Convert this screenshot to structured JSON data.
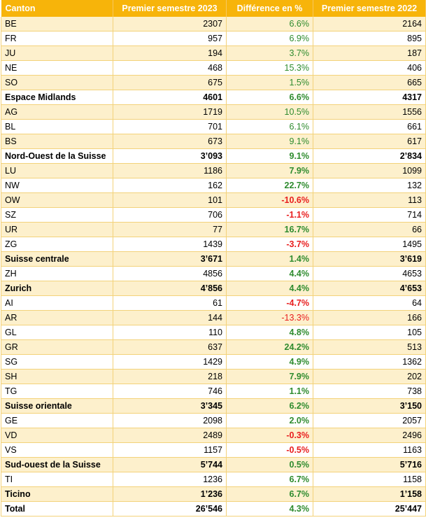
{
  "headers": [
    "Canton",
    "Premier semestre 2023",
    "Différence en %",
    "Premier semestre 2022"
  ],
  "colors": {
    "header_bg": "#f7b40a",
    "shade": "#fdf0cc",
    "positive": "#2e8b2e",
    "negative": "#e81e1e"
  },
  "rows": [
    {
      "canton": "BE",
      "s2023": "2307",
      "diff": "6.6%",
      "s2022": "2164",
      "bold": false,
      "dbold": false,
      "sign": "pos"
    },
    {
      "canton": "FR",
      "s2023": "957",
      "diff": "6.9%",
      "s2022": "895",
      "bold": false,
      "dbold": false,
      "sign": "pos"
    },
    {
      "canton": "JU",
      "s2023": "194",
      "diff": "3.7%",
      "s2022": "187",
      "bold": false,
      "dbold": false,
      "sign": "pos"
    },
    {
      "canton": "NE",
      "s2023": "468",
      "diff": "15.3%",
      "s2022": "406",
      "bold": false,
      "dbold": false,
      "sign": "pos"
    },
    {
      "canton": "SO",
      "s2023": "675",
      "diff": "1.5%",
      "s2022": "665",
      "bold": false,
      "dbold": false,
      "sign": "pos"
    },
    {
      "canton": "Espace Midlands",
      "s2023": "4601",
      "diff": "6.6%",
      "s2022": "4317",
      "bold": true,
      "dbold": false,
      "sign": "pos"
    },
    {
      "canton": "AG",
      "s2023": "1719",
      "diff": "10.5%",
      "s2022": "1556",
      "bold": false,
      "dbold": false,
      "sign": "pos"
    },
    {
      "canton": "BL",
      "s2023": "701",
      "diff": "6.1%",
      "s2022": "661",
      "bold": false,
      "dbold": false,
      "sign": "pos"
    },
    {
      "canton": "BS",
      "s2023": "673",
      "diff": "9.1%",
      "s2022": "617",
      "bold": false,
      "dbold": false,
      "sign": "pos"
    },
    {
      "canton": "Nord-Ouest de la Suisse",
      "s2023": "3’093",
      "diff": "9.1%",
      "s2022": "2’834",
      "bold": true,
      "dbold": true,
      "sign": "pos"
    },
    {
      "canton": "LU",
      "s2023": "1186",
      "diff": "7.9%",
      "s2022": "1099",
      "bold": false,
      "dbold": true,
      "sign": "pos"
    },
    {
      "canton": "NW",
      "s2023": "162",
      "diff": "22.7%",
      "s2022": "132",
      "bold": false,
      "dbold": true,
      "sign": "pos"
    },
    {
      "canton": "OW",
      "s2023": "101",
      "diff": "-10.6%",
      "s2022": "113",
      "bold": false,
      "dbold": true,
      "sign": "neg"
    },
    {
      "canton": "SZ",
      "s2023": "706",
      "diff": "-1.1%",
      "s2022": "714",
      "bold": false,
      "dbold": true,
      "sign": "neg"
    },
    {
      "canton": "UR",
      "s2023": "77",
      "diff": "16.7%",
      "s2022": "66",
      "bold": false,
      "dbold": true,
      "sign": "pos"
    },
    {
      "canton": "ZG",
      "s2023": "1439",
      "diff": "-3.7%",
      "s2022": "1495",
      "bold": false,
      "dbold": true,
      "sign": "neg"
    },
    {
      "canton": "Suisse centrale",
      "s2023": "3’671",
      "diff": "1.4%",
      "s2022": "3’619",
      "bold": true,
      "dbold": true,
      "sign": "pos"
    },
    {
      "canton": "ZH",
      "s2023": "4856",
      "diff": "4.4%",
      "s2022": "4653",
      "bold": false,
      "dbold": true,
      "sign": "pos"
    },
    {
      "canton": "Zurich",
      "s2023": "4’856",
      "diff": "4.4%",
      "s2022": "4’653",
      "bold": true,
      "dbold": true,
      "sign": "pos"
    },
    {
      "canton": "AI",
      "s2023": "61",
      "diff": "-4.7%",
      "s2022": "64",
      "bold": false,
      "dbold": true,
      "sign": "neg"
    },
    {
      "canton": "AR",
      "s2023": "144",
      "diff": "-13.3%",
      "s2022": "166",
      "bold": false,
      "dbold": false,
      "sign": "neg"
    },
    {
      "canton": "GL",
      "s2023": "110",
      "diff": "4.8%",
      "s2022": "105",
      "bold": false,
      "dbold": true,
      "sign": "pos"
    },
    {
      "canton": "GR",
      "s2023": "637",
      "diff": "24.2%",
      "s2022": "513",
      "bold": false,
      "dbold": true,
      "sign": "pos"
    },
    {
      "canton": "SG",
      "s2023": "1429",
      "diff": "4.9%",
      "s2022": "1362",
      "bold": false,
      "dbold": true,
      "sign": "pos"
    },
    {
      "canton": "SH",
      "s2023": "218",
      "diff": "7.9%",
      "s2022": "202",
      "bold": false,
      "dbold": true,
      "sign": "pos"
    },
    {
      "canton": "TG",
      "s2023": "746",
      "diff": "1.1%",
      "s2022": "738",
      "bold": false,
      "dbold": true,
      "sign": "pos"
    },
    {
      "canton": "Suisse orientale",
      "s2023": "3’345",
      "diff": "6.2%",
      "s2022": "3’150",
      "bold": true,
      "dbold": true,
      "sign": "pos"
    },
    {
      "canton": "GE",
      "s2023": "2098",
      "diff": "2.0%",
      "s2022": "2057",
      "bold": false,
      "dbold": true,
      "sign": "pos"
    },
    {
      "canton": "VD",
      "s2023": "2489",
      "diff": "-0.3%",
      "s2022": "2496",
      "bold": false,
      "dbold": true,
      "sign": "neg"
    },
    {
      "canton": "VS",
      "s2023": "1157",
      "diff": "-0.5%",
      "s2022": "1163",
      "bold": false,
      "dbold": true,
      "sign": "neg"
    },
    {
      "canton": "Sud-ouest de la Suisse",
      "s2023": "5’744",
      "diff": "0.5%",
      "s2022": "5’716",
      "bold": true,
      "dbold": true,
      "sign": "pos"
    },
    {
      "canton": "TI",
      "s2023": "1236",
      "diff": "6.7%",
      "s2022": "1158",
      "bold": false,
      "dbold": true,
      "sign": "pos"
    },
    {
      "canton": "Ticino",
      "s2023": "1’236",
      "diff": "6.7%",
      "s2022": "1’158",
      "bold": true,
      "dbold": true,
      "sign": "pos"
    },
    {
      "canton": "Total",
      "s2023": "26’546",
      "diff": "4.3%",
      "s2022": "25’447",
      "bold": true,
      "dbold": true,
      "sign": "pos"
    }
  ]
}
